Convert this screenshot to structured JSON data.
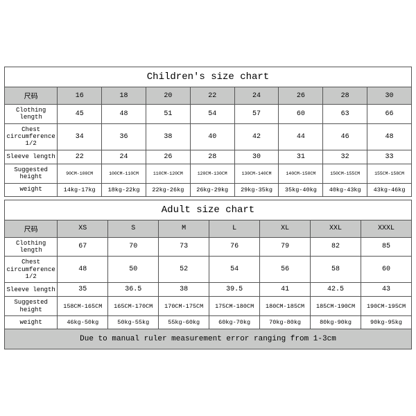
{
  "colors": {
    "border": "#555555",
    "header_bg": "#c8c9c8",
    "page_bg": "#ffffff"
  },
  "children": {
    "title": "Children's size chart",
    "size_label": "尺码",
    "headers": [
      "16",
      "18",
      "20",
      "22",
      "24",
      "26",
      "28",
      "30"
    ],
    "rows": [
      {
        "label": "Clothing length",
        "cells": [
          "45",
          "48",
          "51",
          "54",
          "57",
          "60",
          "63",
          "66"
        ]
      },
      {
        "label": "Chest circumference 1/2",
        "cells": [
          "34",
          "36",
          "38",
          "40",
          "42",
          "44",
          "46",
          "48"
        ]
      },
      {
        "label": "Sleeve length",
        "cells": [
          "22",
          "24",
          "26",
          "28",
          "30",
          "31",
          "32",
          "33"
        ]
      },
      {
        "label": "Suggested height",
        "cells": [
          "90CM-100CM",
          "100CM-110CM",
          "110CM-120CM",
          "120CM-130CM",
          "130CM-140CM",
          "140CM-150CM",
          "150CM-155CM",
          "155CM-158CM"
        ],
        "tiny": true
      },
      {
        "label": "weight",
        "cells": [
          "14kg-17kg",
          "18kg-22kg",
          "22kg-26kg",
          "26kg-29kg",
          "29kg-35kg",
          "35kg-40kg",
          "40kg-43kg",
          "43kg-46kg"
        ],
        "small": true
      }
    ]
  },
  "adult": {
    "title": "Adult size chart",
    "size_label": "尺码",
    "headers": [
      "XS",
      "S",
      "M",
      "L",
      "XL",
      "XXL",
      "XXXL"
    ],
    "rows": [
      {
        "label": "Clothing length",
        "cells": [
          "67",
          "70",
          "73",
          "76",
          "79",
          "82",
          "85"
        ]
      },
      {
        "label": "Chest circumference 1/2",
        "cells": [
          "48",
          "50",
          "52",
          "54",
          "56",
          "58",
          "60"
        ]
      },
      {
        "label": "Sleeve length",
        "cells": [
          "35",
          "36.5",
          "38",
          "39.5",
          "41",
          "42.5",
          "43"
        ]
      },
      {
        "label": "Suggested height",
        "cells": [
          "158CM-165CM",
          "165CM-170CM",
          "170CM-175CM",
          "175CM-180CM",
          "180CM-185CM",
          "185CM-190CM",
          "190CM-195CM"
        ],
        "small": true
      },
      {
        "label": "weight",
        "cells": [
          "46kg-50kg",
          "50kg-55kg",
          "55kg-60kg",
          "60kg-70kg",
          "70kg-80kg",
          "80kg-90kg",
          "90kg-95kg"
        ],
        "small": true
      }
    ],
    "note": "Due to manual ruler measurement error ranging from 1-3cm"
  }
}
